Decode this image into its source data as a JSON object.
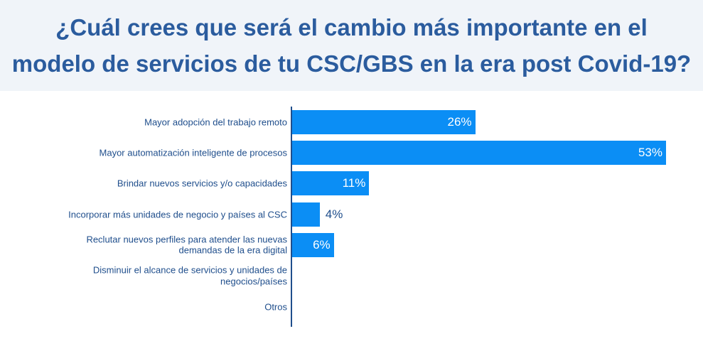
{
  "colors": {
    "title_text": "#2b5c9e",
    "title_background": "#f0f4f9",
    "bar": "#0b8ef5",
    "category_label": "#1f4e8c",
    "axis": "#1f4e8c",
    "data_label_inside": "#ffffff",
    "data_label_outside": "#1f4e8c"
  },
  "chart_data": {
    "type": "bar",
    "orientation": "horizontal",
    "title": "¿Cuál crees que será el cambio más importante en el\nmodelo de servicios de tu CSC/GBS en la era post Covid-19?",
    "categories": [
      "Mayor adopción del trabajo remoto",
      "Mayor automatización inteligente de procesos",
      "Brindar nuevos servicios y/o capacidades",
      "Incorporar más unidades de negocio y países al CSC",
      "Reclutar nuevos perfiles para atender las nuevas demandas de la era digital",
      "Disminuir el alcance de servicios y unidades de negocios/países",
      "Otros"
    ],
    "values": [
      26,
      53,
      11,
      4,
      6,
      0,
      0
    ],
    "data_labels": [
      "26%",
      "53%",
      "11%",
      "4%",
      "6%",
      "",
      ""
    ],
    "xlim": [
      0,
      53
    ],
    "grid": false,
    "legend": "none"
  }
}
